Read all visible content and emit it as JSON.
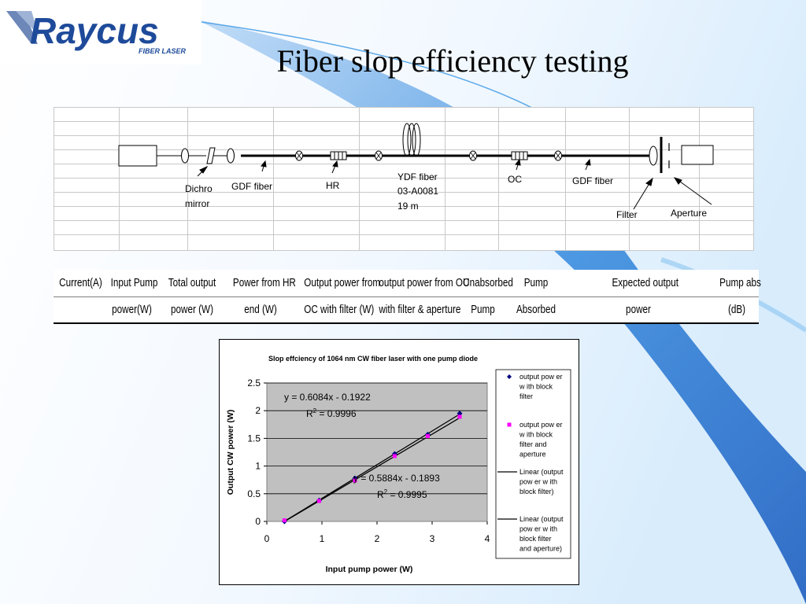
{
  "header": {
    "logo_text": "Raycus",
    "logo_sub": "FIBER LASER",
    "title": "Fiber slop efficiency testing"
  },
  "colors": {
    "brand_blue": "#1e4a9a",
    "swoosh_blue": "#3d8fe0",
    "plot_bg": "#c0c0c0"
  },
  "setup": {
    "labels": {
      "dichro": "Dichro",
      "mirror": "mirror",
      "gdf1": "GDF fiber",
      "hr": "HR",
      "ydf1": "YDF fiber",
      "ydf2": "03-A0081",
      "ydf3": "19 m",
      "oc": "OC",
      "gdf2": "GDF fiber",
      "filter": "Filter",
      "aperture": "Aperture"
    }
  },
  "table": {
    "row1": [
      "Current(A)",
      "Input Pump",
      "Total output",
      "Power from HR",
      "Output power from",
      "output power from OC",
      "Unabsorbed",
      "Pump",
      "",
      "Expected output",
      "",
      "Pump abs"
    ],
    "row2": [
      "",
      "power(W)",
      "power (W)",
      "end (W)",
      "OC with filter (W)",
      "with filter & aperture",
      "Pump",
      "Absorbed",
      "",
      "power",
      "",
      "(dB)"
    ]
  },
  "chart_data": {
    "type": "scatter",
    "title": "Slop effciency of 1064 nm CW fiber laser with one pump diode",
    "xlabel": "Input pump power (W)",
    "ylabel": "Output CW power (W)",
    "xlim": [
      0,
      4
    ],
    "ylim": [
      0,
      2.5
    ],
    "x_ticks": [
      "0",
      "1",
      "2",
      "3",
      "4"
    ],
    "y_ticks": [
      "0",
      "0.5",
      "1",
      "1.5",
      "2",
      "2.5"
    ],
    "grid": true,
    "legend": "right",
    "series": [
      {
        "name": "output power with block filter",
        "color": "#000080",
        "marker": "diamond",
        "x": [
          0.32,
          0.95,
          1.6,
          2.32,
          2.92,
          3.5
        ],
        "y": [
          0.0,
          0.38,
          0.78,
          1.22,
          1.57,
          1.95
        ]
      },
      {
        "name": "output power with block filter and aperture",
        "color": "#ff00ff",
        "marker": "square",
        "x": [
          0.32,
          0.95,
          1.6,
          2.32,
          2.92,
          3.5
        ],
        "y": [
          0.02,
          0.37,
          0.74,
          1.18,
          1.54,
          1.89
        ]
      }
    ],
    "trendlines": [
      {
        "name": "Linear (output power with block filter)",
        "slope": 0.6084,
        "intercept": -0.1922,
        "x_range": [
          0.32,
          3.5
        ]
      },
      {
        "name": "Linear (output power with block filter and aperture)",
        "slope": 0.5884,
        "intercept": -0.1893,
        "x_range": [
          0.32,
          3.5
        ]
      }
    ],
    "legend_lines": [
      [
        "output pow er",
        "w ith block",
        "filter"
      ],
      [
        "output pow er",
        "w ith block",
        "filter and",
        "aperture"
      ],
      [
        "Linear (output",
        "pow er w ith",
        "block filter)"
      ],
      [
        "Linear (output",
        "pow er w ith",
        "block filter",
        "and aperture)"
      ]
    ],
    "annotations": [
      {
        "equation": "y = 0.6084x - 0.1922",
        "r2_prefix": "R",
        "r2_sup": "2",
        "r2_value": " = 0.9996"
      },
      {
        "equation": "y = 0.5884x - 0.1893",
        "r2_prefix": "R",
        "r2_sup": "2",
        "r2_value": " = 0.9995"
      }
    ]
  }
}
